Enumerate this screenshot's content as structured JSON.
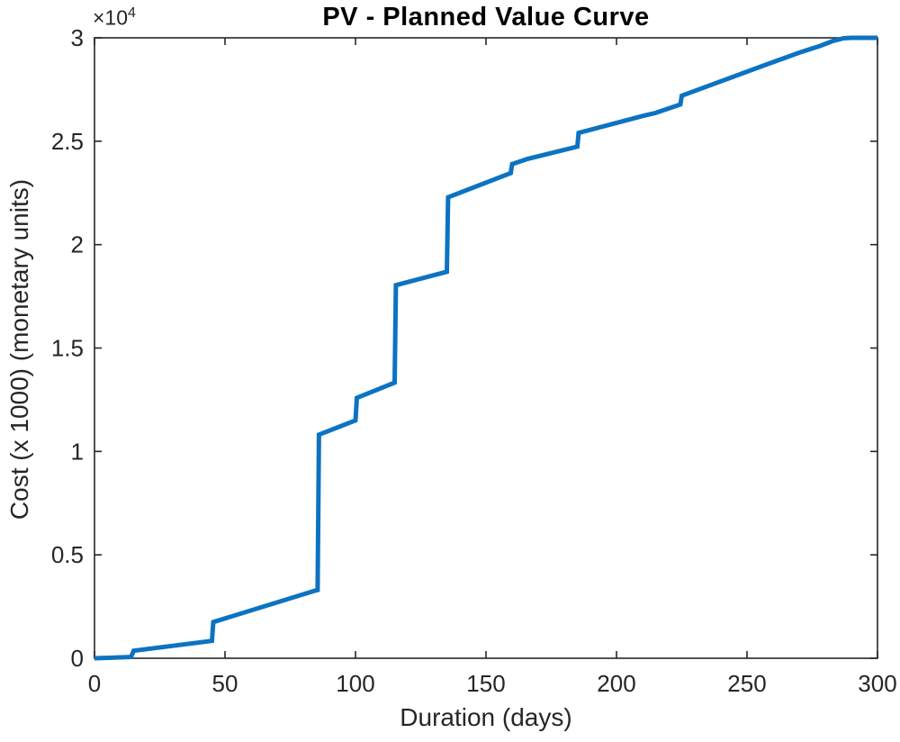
{
  "chart_data": {
    "type": "line",
    "title": "PV - Planned Value Curve",
    "xlabel": "Duration (days)",
    "ylabel": "Cost (x 1000) (monetary units)",
    "y_multiplier": {
      "base": "×10",
      "exp": "4"
    },
    "xlim": [
      0,
      300
    ],
    "ylim": [
      0,
      30000
    ],
    "x_ticks": [
      0,
      50,
      100,
      150,
      200,
      250,
      300
    ],
    "x_tick_labels": [
      "0",
      "50",
      "100",
      "150",
      "200",
      "250",
      "300"
    ],
    "y_ticks": [
      0,
      5000,
      10000,
      15000,
      20000,
      25000,
      30000
    ],
    "y_tick_labels": [
      "0",
      "0.5",
      "1",
      "1.5",
      "2",
      "2.5",
      "3"
    ],
    "grid": false,
    "legend": null,
    "series": [
      {
        "name": "Planned Value",
        "points": [
          [
            0,
            0
          ],
          [
            14,
            60
          ],
          [
            15,
            360
          ],
          [
            45,
            840
          ],
          [
            45.5,
            1750
          ],
          [
            84,
            3250
          ],
          [
            85.5,
            3300
          ],
          [
            86,
            10810
          ],
          [
            100,
            11500
          ],
          [
            100.5,
            12590
          ],
          [
            115,
            13330
          ],
          [
            115.5,
            18040
          ],
          [
            135,
            18690
          ],
          [
            135.5,
            22290
          ],
          [
            159.5,
            23460
          ],
          [
            160,
            23890
          ],
          [
            166,
            24150
          ],
          [
            185,
            24740
          ],
          [
            185.5,
            25400
          ],
          [
            210,
            26220
          ],
          [
            215,
            26370
          ],
          [
            224.5,
            26780
          ],
          [
            225,
            27200
          ],
          [
            257,
            28690
          ],
          [
            270,
            29280
          ],
          [
            278,
            29610
          ],
          [
            283,
            29850
          ],
          [
            287,
            29980
          ],
          [
            290,
            30000
          ],
          [
            300,
            30000
          ]
        ]
      }
    ],
    "style": {
      "line_color": "#0c73c2",
      "line_width": 5,
      "axis_color": "#262626",
      "text_color": "#262626",
      "background": "#ffffff"
    }
  }
}
